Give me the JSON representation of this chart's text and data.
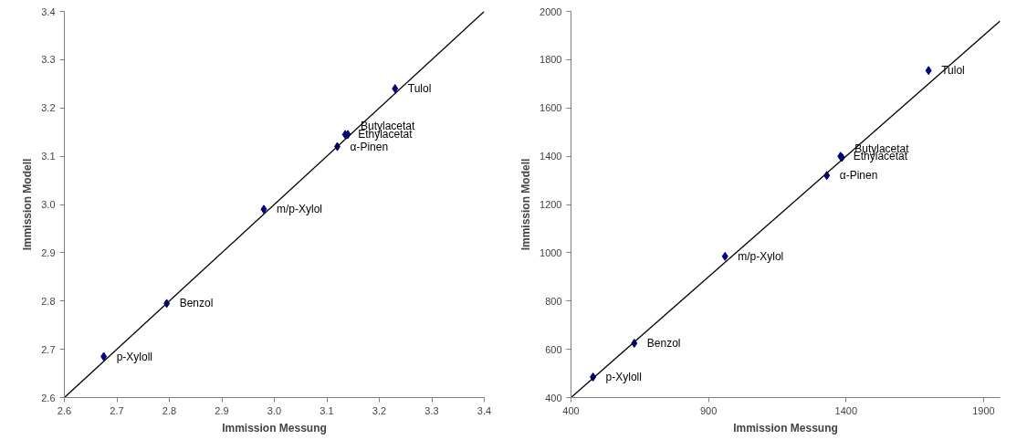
{
  "chart_data": [
    {
      "type": "scatter",
      "xlabel": "Immission Messung",
      "ylabel": "Immission Modell",
      "marker": "diamond",
      "grid": false,
      "xlim": [
        2.6,
        3.4
      ],
      "ylim": [
        2.6,
        3.4
      ],
      "xticks": [
        2.6,
        2.7,
        2.8,
        2.9,
        {
          "value": 3,
          "label": "3.0"
        },
        3.1,
        3.2,
        3.3,
        3.4
      ],
      "yticks": [
        2.6,
        2.7,
        2.8,
        2.9,
        {
          "value": 3,
          "label": "3.0"
        },
        3.1,
        3.2,
        3.3,
        3.4
      ],
      "series": [
        {
          "color": "#000080",
          "x": [
            2.675,
            2.795,
            2.98,
            3.12,
            3.135,
            3.14,
            3.23
          ],
          "values": [
            2.685,
            2.795,
            2.99,
            3.12,
            3.145,
            3.145,
            3.24
          ]
        },
        {
          "type": "line",
          "color": "#000000",
          "marker": "none",
          "x": [
            2.6,
            3.4
          ],
          "values": [
            2.6,
            3.4
          ]
        }
      ],
      "annotations": [
        {
          "text": "p-Xyloll",
          "x": 2.675,
          "y": 2.685
        },
        {
          "text": "Benzol",
          "x": 2.795,
          "y": 2.795
        },
        {
          "text": "m/p-Xylol",
          "x": 2.98,
          "y": 2.99
        },
        {
          "text": "α-Pinen",
          "x": 3.12,
          "y": 3.12
        },
        {
          "text": "Ethylacetat",
          "x": 3.135,
          "y": 3.145
        },
        {
          "text": "Butylacetat",
          "x": 3.14,
          "y": 3.145
        },
        {
          "text": "Tulol",
          "x": 3.23,
          "y": 3.24
        }
      ]
    },
    {
      "type": "scatter",
      "xlabel": "Immission Messung",
      "ylabel": "Immission Modell",
      "marker": "diamond",
      "grid": false,
      "xlim": [
        400,
        1960
      ],
      "ylim": [
        400,
        2000
      ],
      "xticks": [
        400,
        900,
        1400,
        1900
      ],
      "yticks": [
        400,
        600,
        800,
        1000,
        1200,
        1400,
        1600,
        1800,
        2000
      ],
      "series": [
        {
          "color": "#000080",
          "x": [
            480,
            630,
            960,
            1330,
            1380,
            1385,
            1700
          ],
          "values": [
            485,
            625,
            985,
            1320,
            1400,
            1395,
            1755
          ]
        },
        {
          "type": "line",
          "color": "#000000",
          "marker": "none",
          "x": [
            400,
            1960
          ],
          "values": [
            400,
            1960
          ]
        }
      ],
      "annotations": [
        {
          "text": "p-Xyloll",
          "x": 480,
          "y": 485
        },
        {
          "text": "Benzol",
          "x": 630,
          "y": 625
        },
        {
          "text": "m/p-Xylol",
          "x": 960,
          "y": 985
        },
        {
          "text": "α-Pinen",
          "x": 1330,
          "y": 1320
        },
        {
          "text": "Ethylacetat",
          "x": 1380,
          "y": 1400
        },
        {
          "text": "Butylacetat",
          "x": 1385,
          "y": 1395
        },
        {
          "text": "Tulol",
          "x": 1700,
          "y": 1755
        }
      ]
    }
  ]
}
